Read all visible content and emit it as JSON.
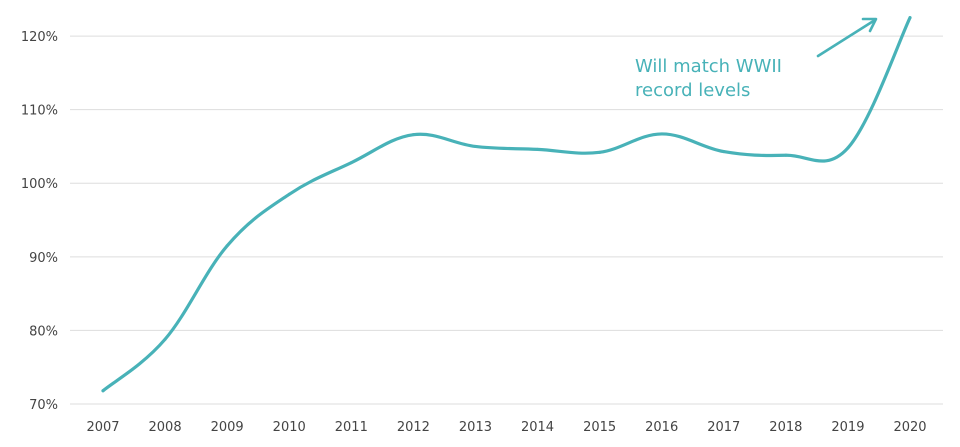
{
  "colors": {
    "series": "#48b2b8",
    "grid": "#dddddd",
    "tick": "#444444"
  },
  "chart_data": {
    "type": "line",
    "title": "",
    "xlabel": "",
    "ylabel": "",
    "x": [
      "2007",
      "2008",
      "2009",
      "2010",
      "2011",
      "2012",
      "2013",
      "2014",
      "2015",
      "2016",
      "2017",
      "2018",
      "2019",
      "2020"
    ],
    "series": [
      {
        "values": [
          71.8,
          78.8,
          91.5,
          98.5,
          102.8,
          106.6,
          105.0,
          104.6,
          104.2,
          106.7,
          104.3,
          103.8,
          104.8,
          122.5
        ]
      }
    ],
    "ylim": [
      70,
      123
    ],
    "y_ticks": [
      70,
      80,
      90,
      100,
      110,
      120
    ],
    "y_tick_labels": [
      "70%",
      "80%",
      "90%",
      "100%",
      "110%",
      "120%"
    ],
    "grid": true,
    "annotation": {
      "lines": [
        "Will match WWII",
        "record levels"
      ],
      "arrow": true
    }
  }
}
